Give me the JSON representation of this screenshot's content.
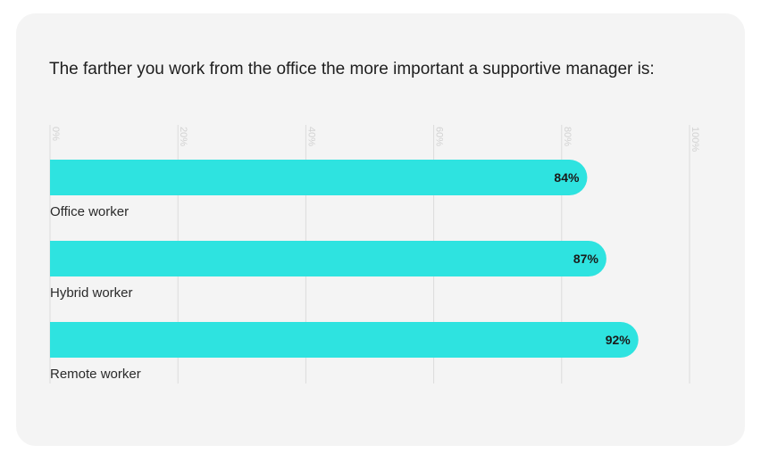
{
  "title": "The farther you work from the office the more important a supportive manager is:",
  "colors": {
    "bar": "#2ee3e0",
    "gridline": "#dcdcdc",
    "card_background": "#f4f4f4"
  },
  "chart_data": {
    "type": "bar",
    "orientation": "horizontal",
    "title": "The farther you work from the office the more important a supportive manager is:",
    "categories": [
      "Office worker",
      "Hybrid worker",
      "Remote worker"
    ],
    "values": [
      84,
      87,
      92
    ],
    "value_labels": [
      "84%",
      "87%",
      "92%"
    ],
    "xlim": [
      0,
      100
    ],
    "ticks": [
      0,
      20,
      40,
      60,
      80,
      100
    ],
    "tick_labels": [
      "0%",
      "20%",
      "40%",
      "60%",
      "80%",
      "100%"
    ],
    "grid": true,
    "legend": "none"
  }
}
